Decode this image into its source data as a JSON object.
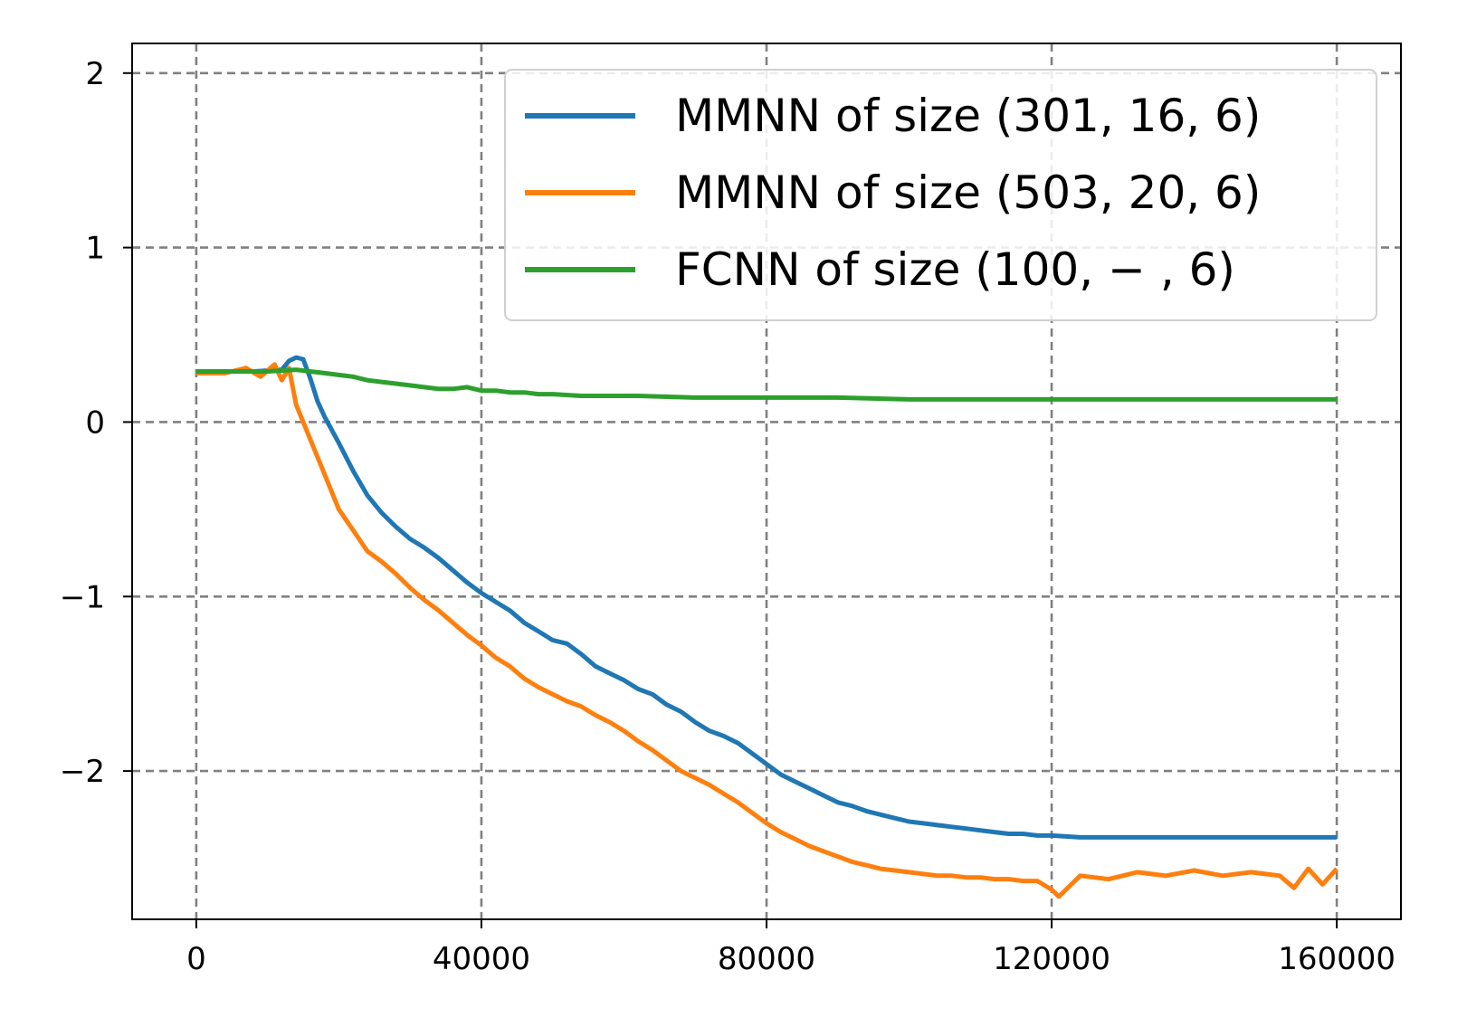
{
  "chart_data": {
    "type": "line",
    "title": "",
    "xlabel": "",
    "ylabel": "",
    "xlim": [
      -9000,
      169000
    ],
    "ylim": [
      -2.85,
      2.17
    ],
    "grid": true,
    "legend_position": "top-right",
    "xticks": [
      0,
      40000,
      80000,
      120000,
      160000
    ],
    "xtick_labels": [
      "0",
      "40000",
      "80000",
      "120000",
      "160000"
    ],
    "yticks": [
      2,
      1,
      0,
      -1,
      -2
    ],
    "ytick_labels": [
      "2",
      "1",
      "0",
      "−1",
      "−2"
    ],
    "series": [
      {
        "name": "MMNN of size (301, 16, 6)",
        "color": "#1f77b4",
        "x": [
          0,
          4000,
          8000,
          12000,
          13000,
          14000,
          15000,
          16000,
          17000,
          18000,
          20000,
          22000,
          24000,
          26000,
          28000,
          30000,
          32000,
          34000,
          36000,
          38000,
          40000,
          42000,
          44000,
          46000,
          48000,
          50000,
          52000,
          54000,
          56000,
          58000,
          60000,
          62000,
          64000,
          66000,
          68000,
          70000,
          72000,
          74000,
          76000,
          78000,
          80000,
          82000,
          84000,
          86000,
          88000,
          90000,
          92000,
          94000,
          96000,
          98000,
          100000,
          102000,
          104000,
          106000,
          108000,
          110000,
          112000,
          114000,
          116000,
          118000,
          120000,
          124000,
          128000,
          132000,
          136000,
          140000,
          144000,
          148000,
          152000,
          156000,
          160000
        ],
        "y": [
          0.29,
          0.29,
          0.29,
          0.3,
          0.35,
          0.37,
          0.36,
          0.25,
          0.12,
          0.03,
          -0.12,
          -0.28,
          -0.42,
          -0.52,
          -0.6,
          -0.67,
          -0.72,
          -0.78,
          -0.85,
          -0.92,
          -0.98,
          -1.03,
          -1.08,
          -1.15,
          -1.2,
          -1.25,
          -1.27,
          -1.33,
          -1.4,
          -1.44,
          -1.48,
          -1.53,
          -1.56,
          -1.62,
          -1.66,
          -1.72,
          -1.77,
          -1.8,
          -1.84,
          -1.9,
          -1.96,
          -2.02,
          -2.06,
          -2.1,
          -2.14,
          -2.18,
          -2.2,
          -2.23,
          -2.25,
          -2.27,
          -2.29,
          -2.3,
          -2.31,
          -2.32,
          -2.33,
          -2.34,
          -2.35,
          -2.36,
          -2.36,
          -2.37,
          -2.37,
          -2.38,
          -2.38,
          -2.38,
          -2.38,
          -2.38,
          -2.38,
          -2.38,
          -2.38,
          -2.38,
          -2.38
        ]
      },
      {
        "name": "MMNN of size (503, 20, 6)",
        "color": "#ff7f0e",
        "x": [
          0,
          4000,
          7000,
          9000,
          11000,
          12000,
          13000,
          14000,
          16000,
          18000,
          20000,
          22000,
          24000,
          26000,
          28000,
          30000,
          32000,
          34000,
          36000,
          38000,
          40000,
          42000,
          44000,
          46000,
          48000,
          50000,
          52000,
          54000,
          56000,
          58000,
          60000,
          62000,
          64000,
          66000,
          68000,
          70000,
          72000,
          74000,
          76000,
          78000,
          80000,
          82000,
          84000,
          86000,
          88000,
          90000,
          92000,
          94000,
          96000,
          98000,
          100000,
          102000,
          104000,
          106000,
          108000,
          110000,
          112000,
          114000,
          116000,
          118000,
          120000,
          121000,
          124000,
          128000,
          132000,
          136000,
          140000,
          144000,
          148000,
          152000,
          154000,
          156000,
          158000,
          160000
        ],
        "y": [
          0.28,
          0.28,
          0.31,
          0.26,
          0.33,
          0.24,
          0.31,
          0.1,
          -0.1,
          -0.3,
          -0.5,
          -0.62,
          -0.74,
          -0.8,
          -0.87,
          -0.95,
          -1.02,
          -1.08,
          -1.15,
          -1.22,
          -1.28,
          -1.35,
          -1.4,
          -1.47,
          -1.52,
          -1.56,
          -1.6,
          -1.63,
          -1.68,
          -1.72,
          -1.77,
          -1.83,
          -1.88,
          -1.94,
          -2.0,
          -2.04,
          -2.08,
          -2.13,
          -2.18,
          -2.24,
          -2.3,
          -2.35,
          -2.39,
          -2.43,
          -2.46,
          -2.49,
          -2.52,
          -2.54,
          -2.56,
          -2.57,
          -2.58,
          -2.59,
          -2.6,
          -2.6,
          -2.61,
          -2.61,
          -2.62,
          -2.62,
          -2.63,
          -2.63,
          -2.68,
          -2.72,
          -2.6,
          -2.62,
          -2.58,
          -2.6,
          -2.57,
          -2.6,
          -2.58,
          -2.6,
          -2.67,
          -2.56,
          -2.65,
          -2.56
        ]
      },
      {
        "name": "FCNN of size (100, − , 6)",
        "color": "#2ca02c",
        "x": [
          0,
          5000,
          10000,
          14000,
          16000,
          18000,
          20000,
          22000,
          24000,
          26000,
          28000,
          30000,
          32000,
          34000,
          36000,
          38000,
          40000,
          42000,
          44000,
          46000,
          48000,
          50000,
          54000,
          58000,
          62000,
          70000,
          80000,
          90000,
          100000,
          110000,
          120000,
          130000,
          140000,
          150000,
          160000
        ],
        "y": [
          0.29,
          0.29,
          0.29,
          0.3,
          0.29,
          0.28,
          0.27,
          0.26,
          0.24,
          0.23,
          0.22,
          0.21,
          0.2,
          0.19,
          0.19,
          0.2,
          0.18,
          0.18,
          0.17,
          0.17,
          0.16,
          0.16,
          0.15,
          0.15,
          0.15,
          0.14,
          0.14,
          0.14,
          0.13,
          0.13,
          0.13,
          0.13,
          0.13,
          0.13,
          0.13
        ]
      }
    ]
  }
}
